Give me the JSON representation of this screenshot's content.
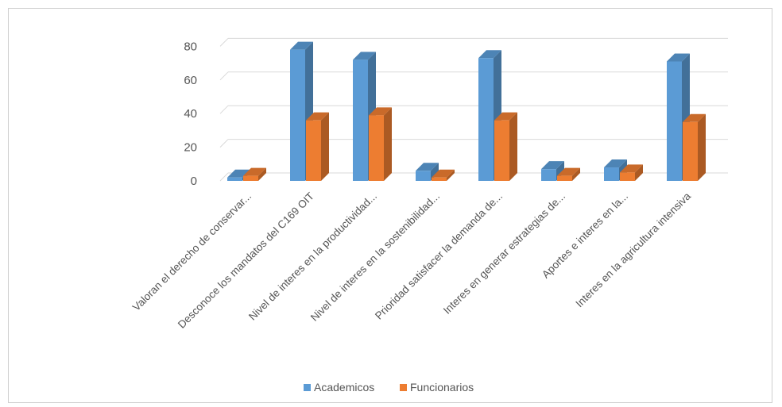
{
  "chart_data": {
    "type": "bar",
    "style": "3d-clustered-column",
    "categories": [
      "Valoran el derecho de conservar...",
      "Desconoce los mandatos del C169 OIT",
      "Nivel de interes en la productividad...",
      "Nivel de interes en la sostenibilidad...",
      "Prioridad satisfacer la demanda de...",
      "Interes en generar estrategias de...",
      "Aportes e interes en la...",
      "Interes en la agricultura intensiva"
    ],
    "series": [
      {
        "name": "Academicos",
        "color": "#5B9BD5",
        "values": [
          2,
          78,
          72,
          6,
          73,
          7,
          8,
          71
        ]
      },
      {
        "name": "Funcionarios",
        "color": "#ED7D31",
        "values": [
          3,
          36,
          39,
          2,
          36,
          3,
          5,
          35
        ]
      }
    ],
    "yticks": [
      "0",
      "20",
      "40",
      "60",
      "80"
    ],
    "ylim": [
      0,
      80
    ],
    "grid": true,
    "legend_position": "bottom"
  }
}
